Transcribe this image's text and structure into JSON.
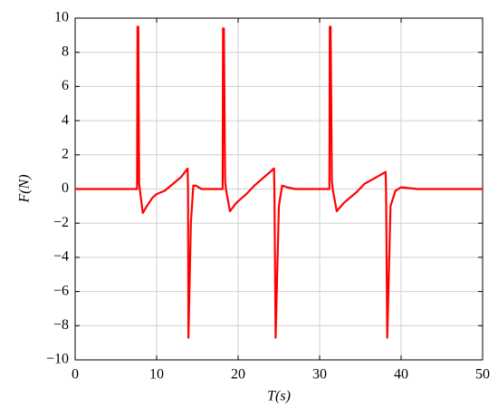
{
  "chart_data": {
    "type": "line",
    "xlabel": "T(s)",
    "ylabel": "F(N)",
    "x": [
      0,
      7.6,
      7.65,
      7.75,
      7.85,
      8.3,
      8.8,
      9.5,
      10,
      11,
      12,
      13,
      13.8,
      13.85,
      13.9,
      14.2,
      14.5,
      14.8,
      15.5,
      18.1,
      18.15,
      18.25,
      18.4,
      18.5,
      19,
      19.8,
      21,
      22,
      23.2,
      24.4,
      24.45,
      24.6,
      25,
      25.4,
      26,
      27,
      31.2,
      31.25,
      31.35,
      31.5,
      31.6,
      32.1,
      33,
      34.5,
      35.5,
      37,
      38.1,
      38.15,
      38.3,
      38.7,
      39.3,
      40,
      42,
      50
    ],
    "series": [
      {
        "name": "F",
        "color": "#ff0000",
        "values": [
          0,
          0,
          9.5,
          9.5,
          0.3,
          -1.4,
          -1.0,
          -0.5,
          -0.3,
          -0.1,
          0.3,
          0.7,
          1.2,
          0,
          -8.7,
          -2,
          0.2,
          0.2,
          0,
          0,
          9.4,
          9.4,
          0.5,
          0,
          -1.3,
          -0.8,
          -0.3,
          0.2,
          0.7,
          1.2,
          0,
          -8.7,
          -1,
          0.2,
          0.1,
          0,
          0,
          9.5,
          9.5,
          0.5,
          0,
          -1.3,
          -0.8,
          -0.2,
          0.3,
          0.7,
          1.0,
          0,
          -8.7,
          -1,
          -0.1,
          0.1,
          0,
          0
        ]
      }
    ],
    "xlim": [
      0,
      50
    ],
    "ylim": [
      -10,
      10
    ],
    "xticks": [
      0,
      10,
      20,
      30,
      40,
      50
    ],
    "yticks": [
      {
        "value": -10,
        "label": "−10"
      },
      {
        "value": -8,
        "label": "−8"
      },
      {
        "value": -6,
        "label": "−6"
      },
      {
        "value": -4,
        "label": "−4"
      },
      {
        "value": -2,
        "label": "−2"
      },
      0,
      2,
      4,
      6,
      8,
      10
    ],
    "grid": true
  }
}
